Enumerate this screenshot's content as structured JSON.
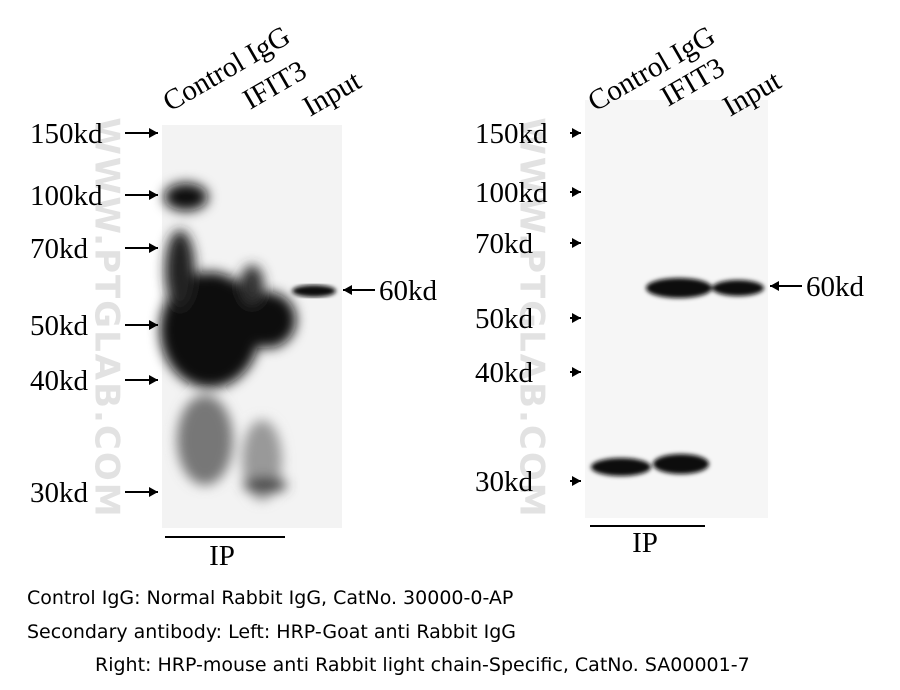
{
  "panels": [
    {
      "lanes": [
        "Control IgG",
        "IFIT3",
        "Input"
      ],
      "markers": [
        "150kd",
        "100kd",
        "70kd",
        "50kd",
        "40kd",
        "30kd"
      ],
      "band_label": "60kd",
      "group_label": "IP",
      "watermark": "WWW.PTGLAB.COM"
    },
    {
      "lanes": [
        "Control IgG",
        "IFIT3",
        "Input"
      ],
      "markers": [
        "150kd",
        "100kd",
        "70kd",
        "50kd",
        "40kd",
        "30kd"
      ],
      "band_label": "60kd",
      "group_label": "IP",
      "watermark": "WWW.PTGLAB.COM"
    }
  ],
  "caption": [
    "Control IgG: Normal Rabbit IgG, CatNo. 30000-0-AP",
    "Secondary antibody: Left:  HRP-Goat anti Rabbit IgG",
    "Right: HRP-mouse anti Rabbit light chain-Specific, CatNo. SA00001-7"
  ]
}
